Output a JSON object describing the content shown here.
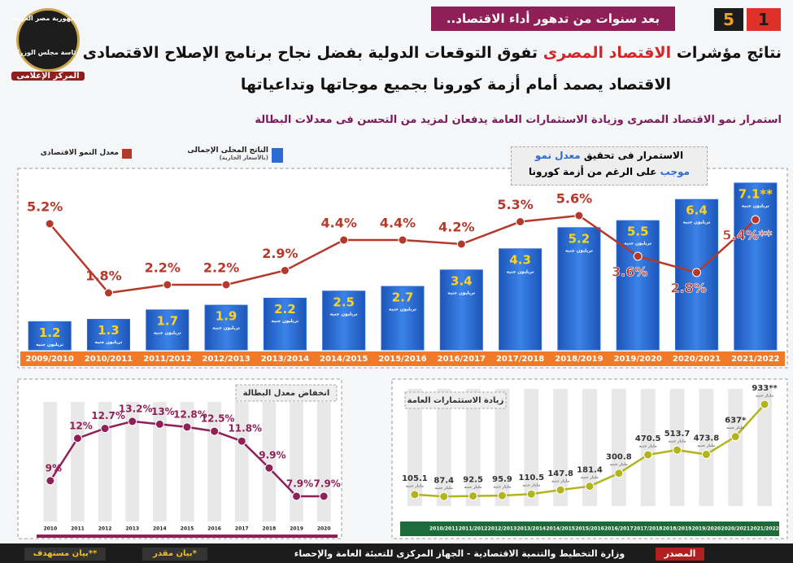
{
  "header": {
    "badge_left": "5",
    "badge_right": "1",
    "tag": "بعد سنوات من تدهور أداء الاقتصاد..",
    "title_parts": [
      "نتائج مؤشرات",
      "الاقتصاد المصرى",
      "تفوق التوقعات الدولية بفضل نجاح برنامج الإصلاح الاقتصادى"
    ],
    "title_line2": "الاقتصاد يصمد أمام أزمة كورونا بجميع موجاتها وتداعياتها",
    "subtitle": "استمرار نمو الاقتصاد المصرى وزيادة الاستثمارات العامة يدفعان لمزيد من التحسن فى معدلات البطالة",
    "logo": [
      "جمهورية مصر العربية",
      "رئاسة مجلس الوزراء",
      "المركز الإعلامى"
    ]
  },
  "chart_data": [
    {
      "type": "bar",
      "annotation": [
        "الاستمرار فى تحقيق",
        "معدل نمو",
        "موجب",
        "على الرغم من أزمة كورونا"
      ],
      "categories": [
        "2009/2010",
        "2010/2011",
        "2011/2012",
        "2012/2013",
        "2013/2014",
        "2014/2015",
        "2015/2016",
        "2016/2017",
        "2017/2018",
        "2018/2019",
        "2019/2020",
        "2020/2021",
        "2021/2022"
      ],
      "ylim": [
        0,
        8
      ],
      "y2lim": [
        0,
        8
      ],
      "series": [
        {
          "name": "الناتج المحلى الإجمالى",
          "note": "(بالأسعار الجارية)",
          "unit": "تريليون جنيه",
          "color": "#2a6bd4",
          "values": [
            1.2,
            1.3,
            1.7,
            1.9,
            2.2,
            2.5,
            2.7,
            3.4,
            4.3,
            5.2,
            5.5,
            6.4,
            7.1
          ],
          "value_labels": [
            "1.2",
            "1.3",
            "1.7",
            "1.9",
            "2.2",
            "2.5",
            "2.7",
            "3.4",
            "4.3",
            "5.2",
            "5.5",
            "6.4",
            "7.1**"
          ]
        },
        {
          "name": "معدل النمو الاقتصادى",
          "type": "line",
          "axis": "y2",
          "color": "#b5392a",
          "values": [
            5.2,
            1.8,
            2.2,
            2.2,
            2.9,
            4.4,
            4.4,
            4.2,
            5.3,
            5.6,
            3.6,
            2.8,
            5.4
          ],
          "value_labels": [
            "5.2%",
            "1.8%",
            "2.2%",
            "2.2%",
            "2.9%",
            "4.4%",
            "4.4%",
            "4.2%",
            "5.3%",
            "5.6%",
            "3.6%",
            "2.8%",
            "5.4%**"
          ]
        }
      ]
    },
    {
      "type": "line",
      "title": "انخفاض معدل البطالة",
      "categories": [
        "2010",
        "2011",
        "2012",
        "2013",
        "2014",
        "2015",
        "2016",
        "2017",
        "2018",
        "2019",
        "2020"
      ],
      "ylim": [
        6,
        14
      ],
      "series": [
        {
          "name": "معدل البطالة",
          "color": "#8e1f57",
          "values": [
            9,
            12,
            12.7,
            13.2,
            13,
            12.8,
            12.5,
            11.8,
            9.9,
            7.9,
            7.9
          ],
          "value_labels": [
            "9%",
            "12%",
            "12.7%",
            "13.2%",
            "13%",
            "12.8%",
            "12.5%",
            "11.8%",
            "9.9%",
            "7.9%",
            "7.9%"
          ]
        }
      ]
    },
    {
      "type": "line",
      "title": "زيادة الاستثمارات العامة",
      "categories": [
        null,
        "2010/2011",
        "2011/2012",
        "2012/2013",
        "2013/2014",
        "2014/2015",
        "2015/2016",
        "2016/2017",
        "2017/2018",
        "2018/2019",
        "2019/2020",
        "2020/2021",
        "2021/2022"
      ],
      "ylim": [
        0,
        1000
      ],
      "series": [
        {
          "name": "الاستثمارات العامة",
          "unit": "مليار جنيه",
          "color": "#b3b41c",
          "values": [
            105.1,
            87.4,
            92.5,
            95.9,
            110.5,
            147.8,
            181.4,
            300.8,
            470.5,
            513.7,
            473.8,
            637,
            933
          ],
          "value_labels": [
            "105.1",
            "87.4",
            "92.5",
            "95.9",
            "110.5",
            "147.8",
            "181.4",
            "300.8",
            "470.5",
            "513.7",
            "473.8",
            "637*",
            "933**"
          ]
        }
      ]
    }
  ],
  "footer": {
    "source_label": "المصدر",
    "source": "وزارة التخطيط والتنمية الاقتصادية - الجهاز المركزى للتعبئة العامة والإحصاء",
    "estimated": "*بيان مقدر",
    "target": "**بيان مستهدف"
  }
}
